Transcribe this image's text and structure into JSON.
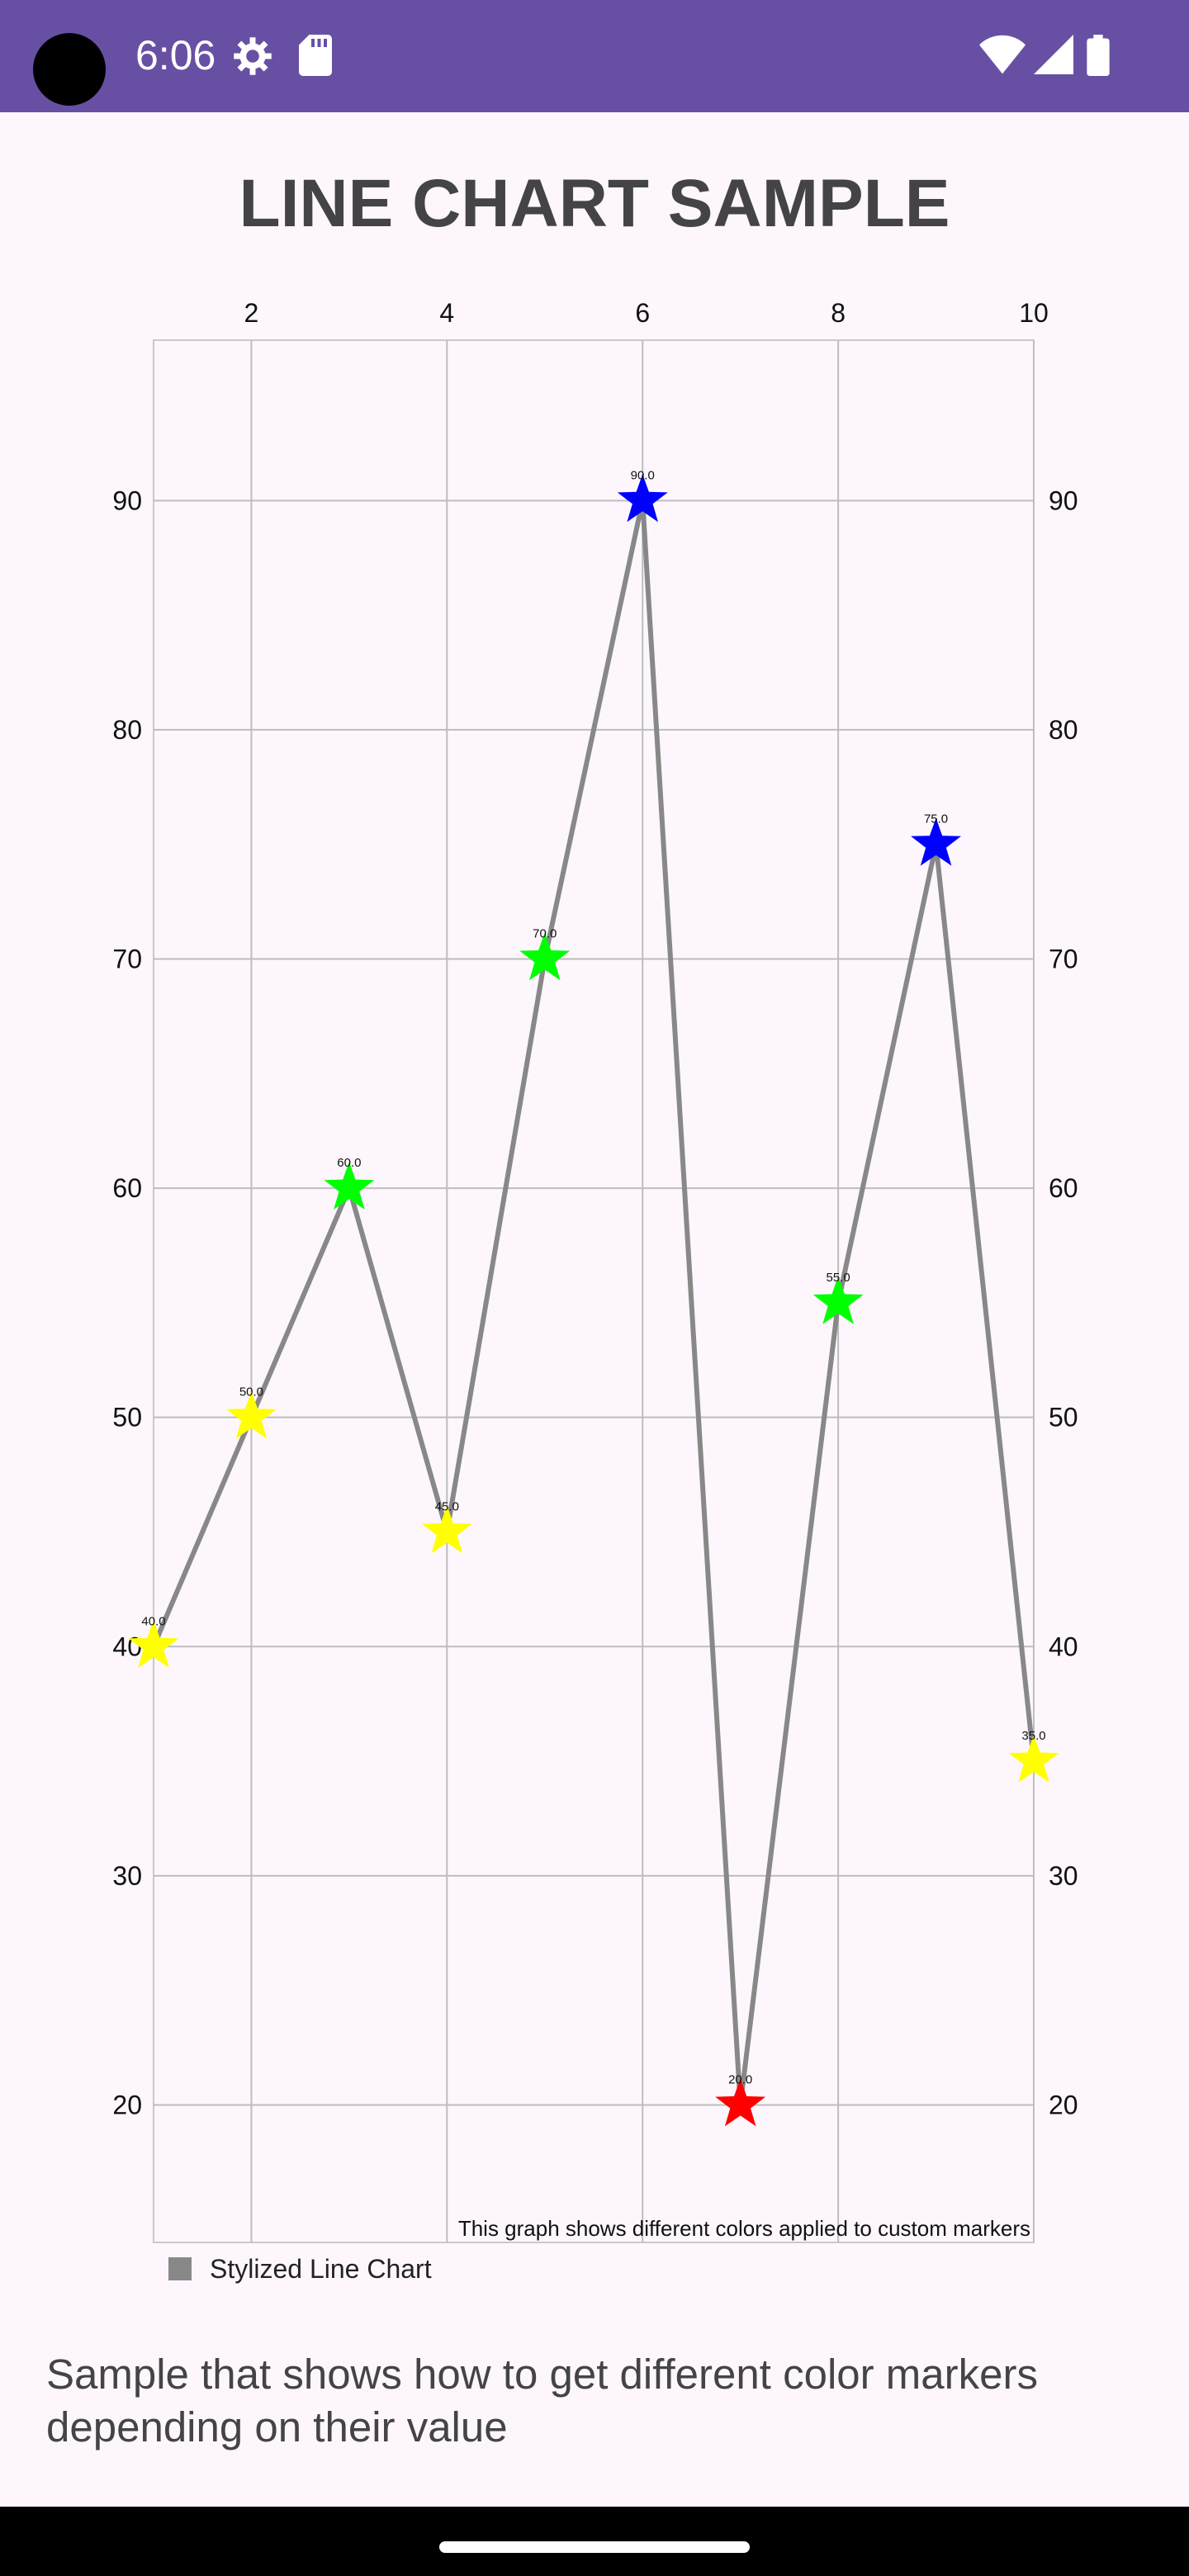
{
  "status_bar": {
    "time": "6:06",
    "icons": [
      "gear-icon",
      "sd-card-icon",
      "wifi-icon",
      "cellular-signal-icon",
      "battery-icon"
    ],
    "background_color": "#6750a4"
  },
  "page": {
    "title": "LINE CHART SAMPLE",
    "description": "Sample that shows how to get different color markers depending on their value"
  },
  "chart_data": {
    "type": "line",
    "title": "",
    "xlabel": "",
    "ylabel": "",
    "x": [
      1,
      2,
      3,
      4,
      5,
      6,
      7,
      8,
      9,
      10
    ],
    "xlim": [
      1,
      10
    ],
    "ylim": [
      14,
      97
    ],
    "x_ticks": [
      2,
      4,
      6,
      8,
      10
    ],
    "y_ticks": [
      20,
      30,
      40,
      50,
      60,
      70,
      80,
      90
    ],
    "x_axis_position": "top",
    "y_axes": [
      "left",
      "right"
    ],
    "grid": true,
    "description_text": "This graph shows different colors applied to custom markers",
    "legend": {
      "placement": "bottom-left",
      "entries": [
        "Stylized Line Chart"
      ]
    },
    "series": [
      {
        "name": "Stylized Line Chart",
        "color": "#888888",
        "marker": "star",
        "values": [
          40,
          50,
          60,
          45,
          70,
          90,
          20,
          55,
          75,
          35
        ],
        "value_labels": [
          "40.0",
          "50.0",
          "60.0",
          "45.0",
          "70.0",
          "90.0",
          "20.0",
          "55.0",
          "75.0",
          "35.0"
        ],
        "marker_colors": [
          "#ffff00",
          "#ffff00",
          "#00ff00",
          "#ffff00",
          "#00ff00",
          "#0000ff",
          "#ff0000",
          "#00ff00",
          "#0000ff",
          "#ffff00"
        ]
      }
    ]
  }
}
